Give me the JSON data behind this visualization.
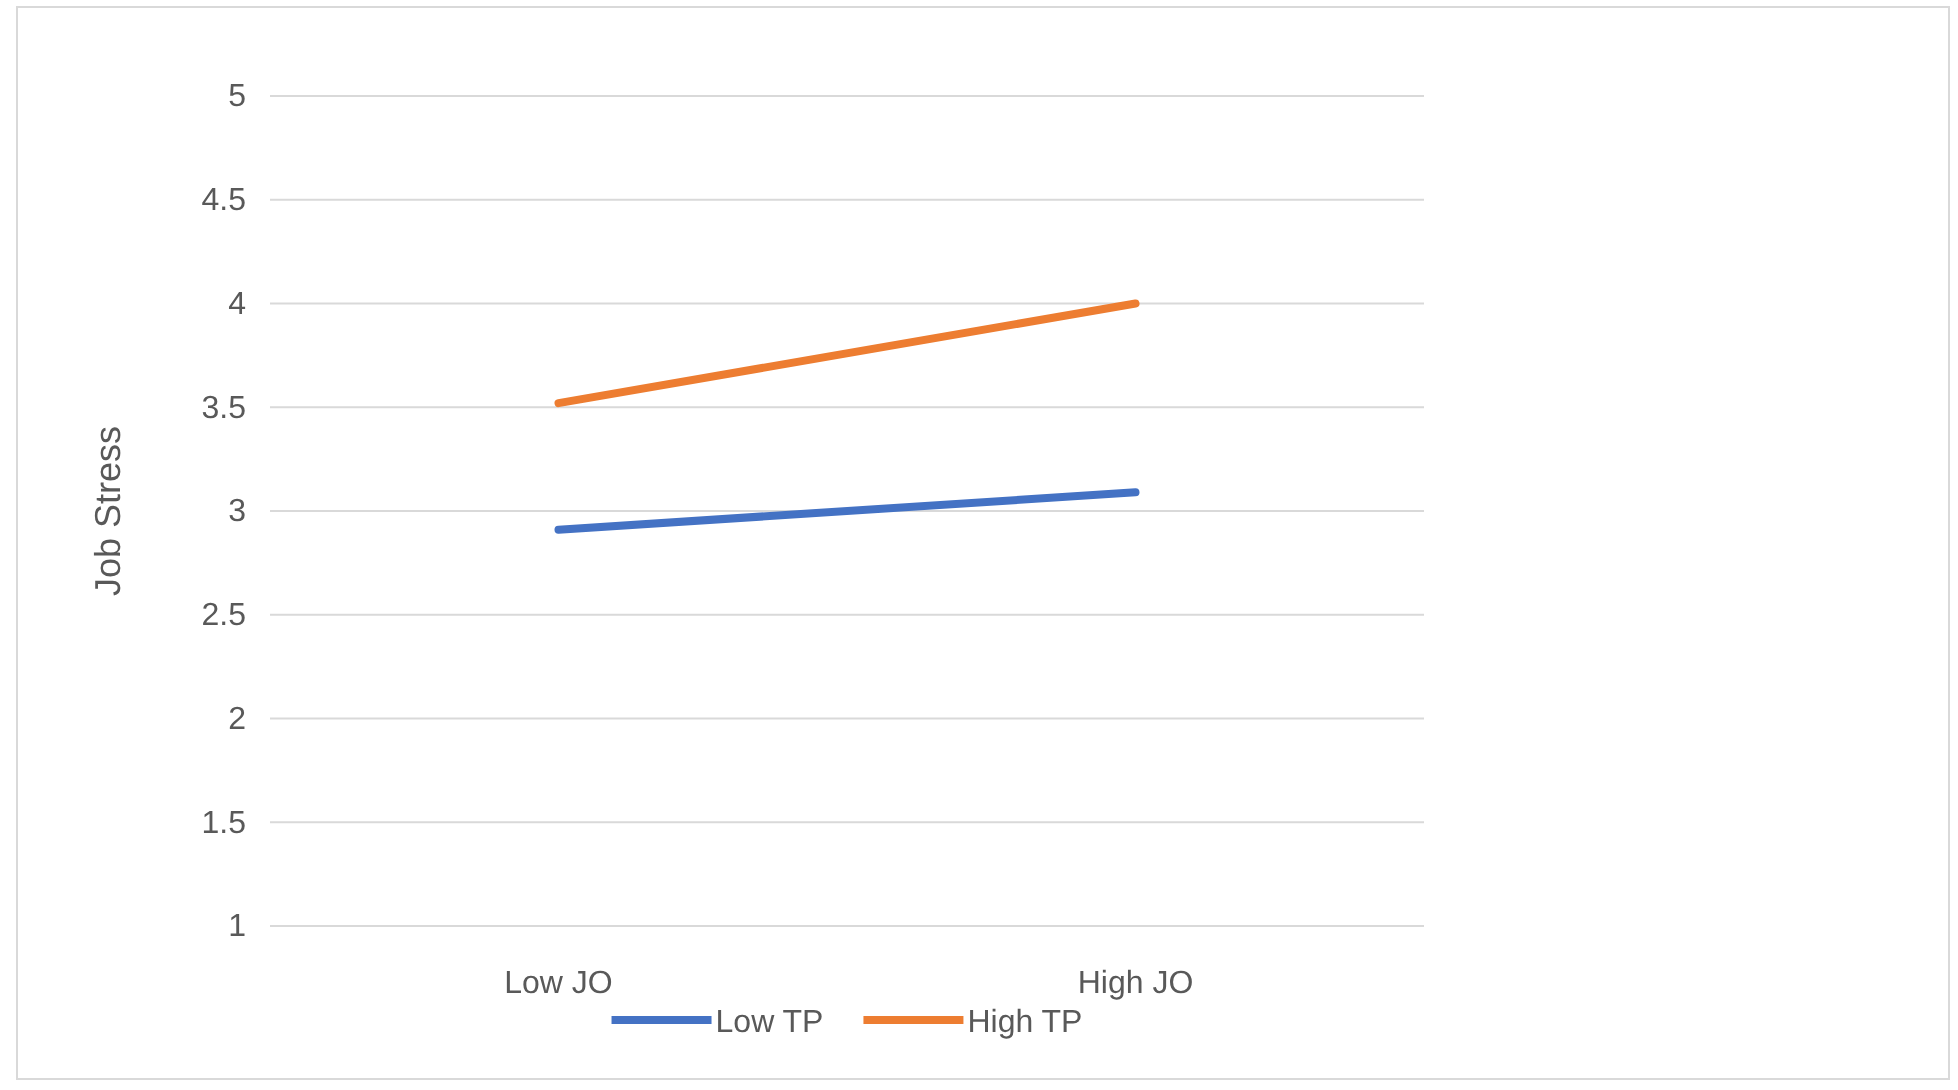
{
  "chart_data": {
    "type": "line",
    "ylabel": "Job Stress",
    "categories": [
      "Low JO",
      "High JO"
    ],
    "series": [
      {
        "name": "Low TP",
        "color": "#4472c4",
        "values": [
          2.91,
          3.09
        ]
      },
      {
        "name": "High TP",
        "color": "#ed7d31",
        "values": [
          3.52,
          4.0
        ]
      }
    ],
    "ylim": [
      1,
      5
    ],
    "yticks": [
      1,
      1.5,
      2,
      2.5,
      3,
      3.5,
      4,
      4.5,
      5
    ],
    "grid": "y",
    "legend": "bottom",
    "marker": "none",
    "line_style": "solid"
  }
}
